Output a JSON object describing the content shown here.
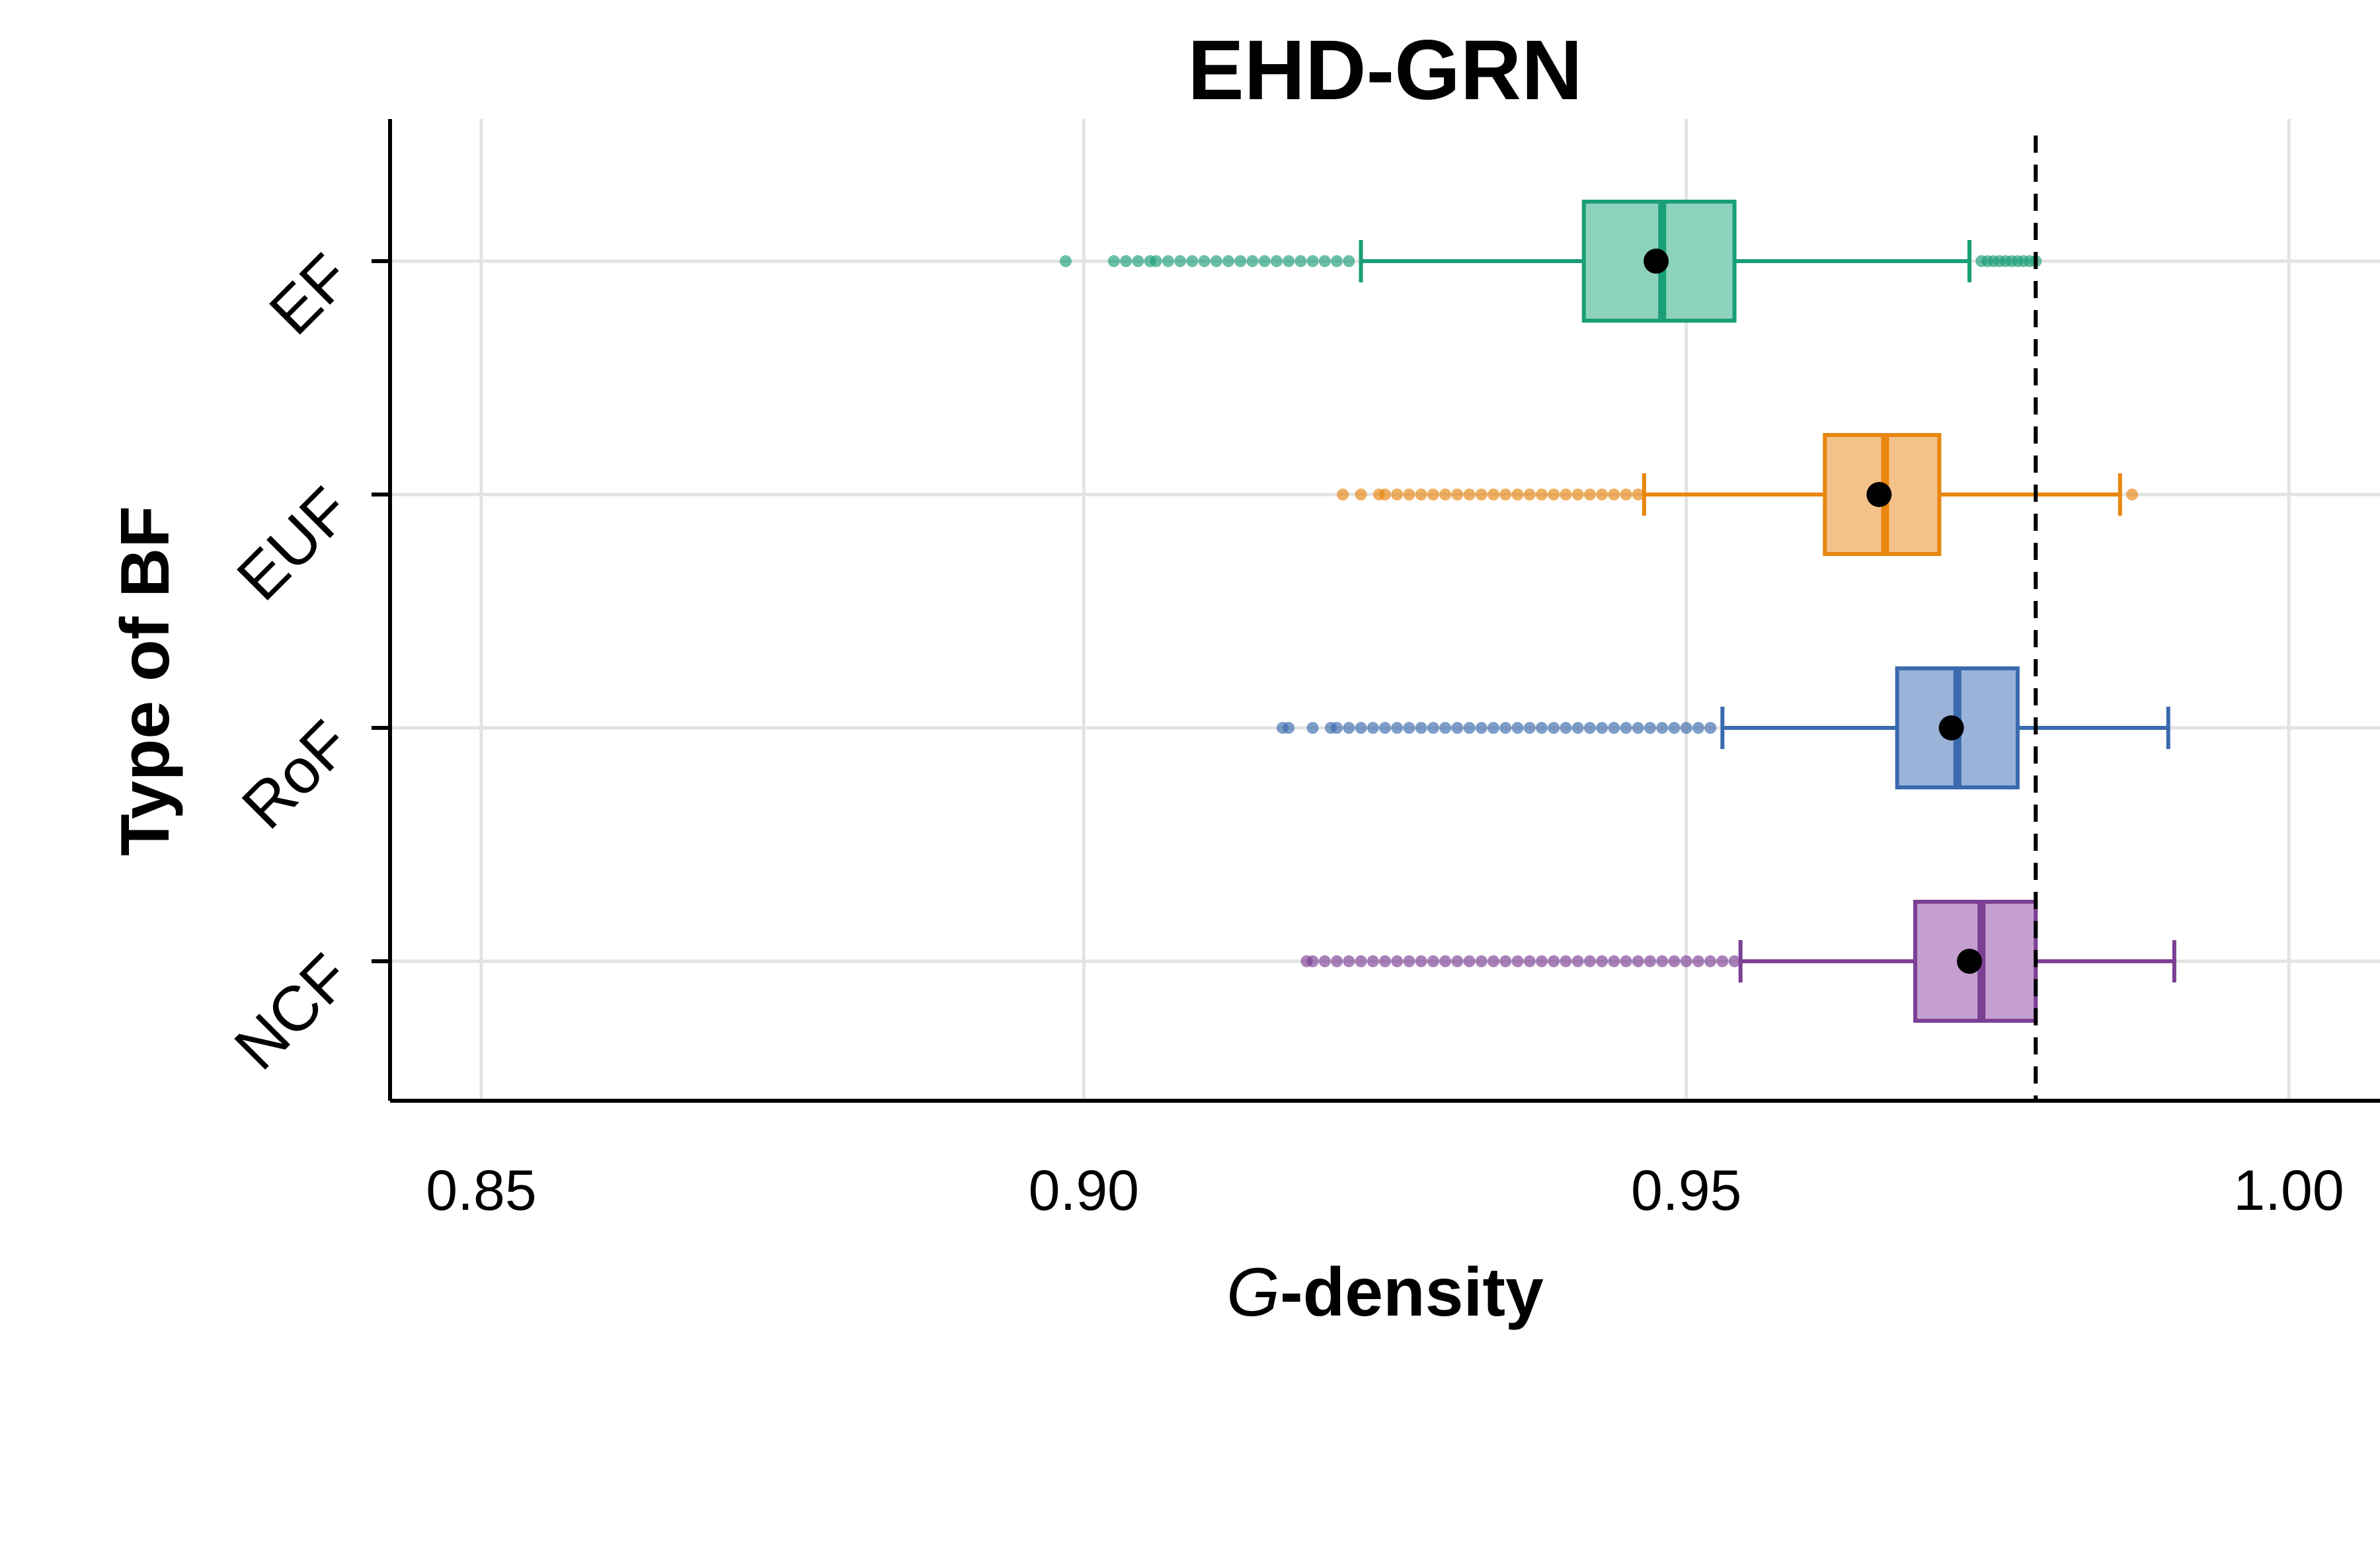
{
  "chart_data": {
    "type": "boxplot",
    "title": "EHD-GRN",
    "xlabel_prefix": "G",
    "xlabel_suffix": "-density",
    "ylabel": "Type of BF",
    "xlim": [
      0.843,
      1.015
    ],
    "x_ticks": [
      0.85,
      0.9,
      0.95,
      1.0
    ],
    "x_tick_labels": [
      "0.85",
      "0.90",
      "0.95",
      "1.00"
    ],
    "grid": true,
    "reference_line": {
      "x": 0.979,
      "style": "dashed"
    },
    "categories": [
      "EF",
      "EUF",
      "RoF",
      "NCF"
    ],
    "series": [
      {
        "category": "EF",
        "color": "#1a9e77",
        "fill": "#8dd3bc",
        "whisker_low": 0.923,
        "q1": 0.9415,
        "median": 0.948,
        "q3": 0.954,
        "whisker_high": 0.9735,
        "mean": 0.9475,
        "outliers_low": [
          0.8985,
          0.9025,
          0.9035,
          0.9045,
          0.9055,
          0.906,
          0.907,
          0.908,
          0.909,
          0.91,
          0.911,
          0.912,
          0.913,
          0.914,
          0.915,
          0.916,
          0.917,
          0.918,
          0.919,
          0.92,
          0.921,
          0.922
        ],
        "outliers_high": [
          0.9745,
          0.975,
          0.9755,
          0.976,
          0.9765,
          0.977,
          0.9775,
          0.978,
          0.9785,
          0.979
        ]
      },
      {
        "category": "EUF",
        "color": "#e8860f",
        "fill": "#f3c28a",
        "whisker_low": 0.9465,
        "q1": 0.9615,
        "median": 0.9665,
        "q3": 0.971,
        "whisker_high": 0.986,
        "mean": 0.966,
        "outliers_low": [
          0.9215,
          0.923,
          0.9245,
          0.925,
          0.926,
          0.927,
          0.928,
          0.929,
          0.93,
          0.931,
          0.932,
          0.933,
          0.934,
          0.935,
          0.936,
          0.937,
          0.938,
          0.939,
          0.94,
          0.941,
          0.942,
          0.943,
          0.944,
          0.945,
          0.946
        ],
        "outliers_high": [
          0.987
        ]
      },
      {
        "category": "RoF",
        "color": "#3b6aae",
        "fill": "#9bb3d9",
        "whisker_low": 0.953,
        "q1": 0.9675,
        "median": 0.9725,
        "q3": 0.9775,
        "whisker_high": 0.99,
        "mean": 0.972,
        "outliers_low": [
          0.9165,
          0.917,
          0.919,
          0.9205,
          0.921,
          0.922,
          0.923,
          0.924,
          0.925,
          0.926,
          0.927,
          0.928,
          0.929,
          0.93,
          0.931,
          0.932,
          0.933,
          0.934,
          0.935,
          0.936,
          0.937,
          0.938,
          0.939,
          0.94,
          0.941,
          0.942,
          0.943,
          0.944,
          0.945,
          0.946,
          0.947,
          0.948,
          0.949,
          0.95,
          0.951,
          0.952
        ],
        "outliers_high": []
      },
      {
        "category": "NCF",
        "color": "#7b3f94",
        "fill": "#c49fd0",
        "whisker_low": 0.9545,
        "q1": 0.969,
        "median": 0.9745,
        "q3": 0.979,
        "whisker_high": 0.9905,
        "mean": 0.9735,
        "outliers_low": [
          0.9185,
          0.919,
          0.92,
          0.921,
          0.922,
          0.923,
          0.924,
          0.925,
          0.926,
          0.927,
          0.928,
          0.929,
          0.93,
          0.931,
          0.932,
          0.933,
          0.934,
          0.935,
          0.936,
          0.937,
          0.938,
          0.939,
          0.94,
          0.941,
          0.942,
          0.943,
          0.944,
          0.945,
          0.946,
          0.947,
          0.948,
          0.949,
          0.95,
          0.951,
          0.952,
          0.953,
          0.954
        ],
        "outliers_high": []
      }
    ]
  }
}
